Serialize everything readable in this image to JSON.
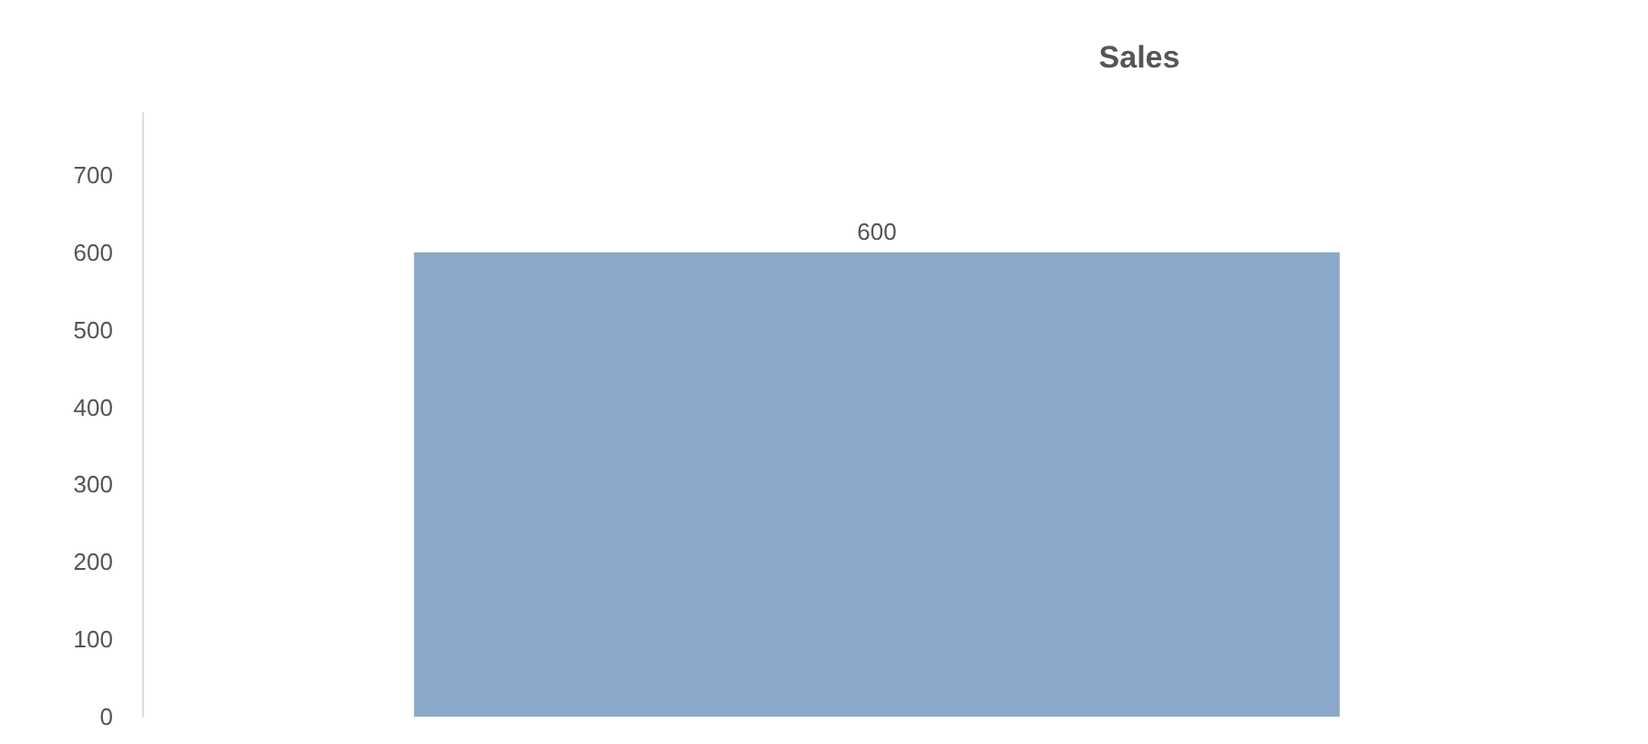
{
  "chart_data": {
    "type": "bar",
    "title": "Sales",
    "categories": [
      null
    ],
    "values": [
      600
    ],
    "color": "#8aa8c9",
    "ylim": [
      0,
      780
    ],
    "yticks": [
      0,
      100,
      200,
      300,
      400,
      500,
      600,
      700
    ],
    "grid": false,
    "data_labels": true
  }
}
